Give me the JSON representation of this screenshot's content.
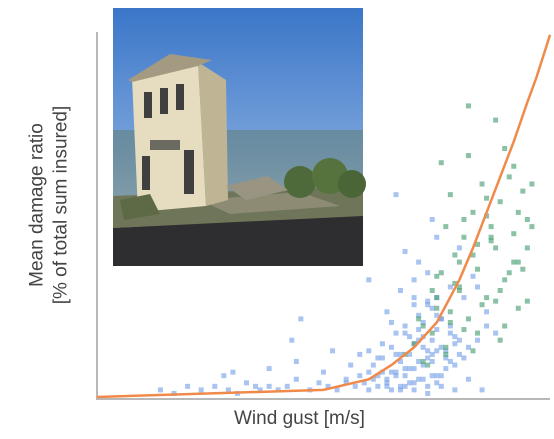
{
  "chart_data": {
    "type": "scatter",
    "title": "",
    "xlabel": "Wind gust [m/s]",
    "ylabel_lines": [
      "Mean damage ratio",
      "[% of total sum insured]"
    ],
    "xlim": [
      0,
      100
    ],
    "ylim": [
      0,
      100
    ],
    "grid": false,
    "legend": "none",
    "axis_color": "#b8b8b8",
    "curve_color": "#f08a4b",
    "point_colors": {
      "blue": "#6f9ce6",
      "green": "#3d9a6a"
    },
    "series": [
      {
        "color_key": "blue",
        "x": [
          14,
          17,
          20,
          23,
          26,
          29,
          31,
          33,
          36,
          38,
          40,
          42,
          44,
          47,
          49,
          51,
          53,
          55,
          57,
          58,
          60,
          61,
          62,
          63,
          64,
          65,
          66,
          67,
          68,
          69,
          70,
          71,
          72,
          73,
          74,
          75,
          59,
          62,
          64,
          66,
          68,
          70,
          72,
          74,
          76,
          61,
          63,
          65,
          67,
          69,
          71,
          73,
          75,
          77,
          79,
          65,
          67,
          69,
          71,
          73,
          75,
          77,
          79,
          70,
          72,
          74,
          76,
          78,
          80,
          66,
          68,
          71,
          74,
          77,
          80,
          72,
          75,
          78,
          81,
          64,
          70,
          76,
          82,
          70,
          74,
          78,
          67,
          73,
          79,
          70,
          76,
          73,
          78,
          50,
          56,
          62,
          68,
          60,
          63,
          66,
          69,
          72,
          75,
          64,
          67,
          70,
          73,
          76,
          79,
          82,
          85,
          84,
          86,
          88,
          81,
          83,
          86,
          71,
          75,
          68,
          74,
          80,
          66,
          60,
          84,
          38,
          44,
          52,
          58,
          45,
          60,
          55,
          35,
          28,
          43,
          30,
          65,
          68,
          71,
          73,
          75
        ],
        "y": [
          2,
          1,
          3,
          2,
          3,
          2,
          1,
          4,
          2,
          3,
          2,
          3,
          5,
          2,
          4,
          3,
          2,
          4,
          3,
          6,
          2,
          5,
          3,
          7,
          4,
          2,
          6,
          3,
          8,
          4,
          2,
          5,
          9,
          3,
          6,
          4,
          4,
          6,
          5,
          7,
          3,
          8,
          5,
          10,
          6,
          9,
          11,
          7,
          12,
          8,
          10,
          13,
          6,
          11,
          9,
          14,
          10,
          12,
          16,
          11,
          13,
          8,
          15,
          15,
          17,
          12,
          14,
          10,
          16,
          18,
          20,
          19,
          16,
          13,
          12,
          21,
          23,
          18,
          11,
          24,
          26,
          22,
          14,
          28,
          25,
          20,
          30,
          27,
          17,
          33,
          22,
          35,
          31,
          7,
          9,
          11,
          6,
          13,
          15,
          12,
          17,
          14,
          19,
          3,
          2,
          4,
          1,
          3,
          2,
          5,
          2,
          16,
          20,
          18,
          28,
          34,
          24,
          38,
          45,
          41,
          50,
          42,
          57,
          33,
          31,
          8,
          10,
          13,
          12,
          22,
          7,
          5,
          3,
          6,
          16,
          7,
          21,
          18,
          23,
          26,
          28
        ]
      },
      {
        "color_key": "green",
        "x": [
          70,
          72,
          74,
          75,
          76,
          77,
          78,
          79,
          80,
          81,
          82,
          83,
          84,
          85,
          86,
          87,
          88,
          89,
          90,
          91,
          92,
          93,
          94,
          95,
          73,
          75,
          77,
          79,
          81,
          83,
          85,
          87,
          89,
          91,
          93,
          95,
          71,
          74,
          77,
          80,
          83,
          86,
          89,
          92,
          95,
          72,
          75,
          78,
          81,
          84,
          87,
          90,
          93,
          96,
          76,
          80,
          84,
          88,
          92,
          96,
          78,
          82,
          86,
          90,
          94,
          68,
          88,
          82
        ],
        "y": [
          15,
          20,
          18,
          28,
          35,
          12,
          24,
          40,
          30,
          45,
          22,
          52,
          36,
          60,
          28,
          48,
          42,
          55,
          33,
          62,
          46,
          38,
          58,
          50,
          9,
          25,
          14,
          32,
          19,
          40,
          26,
          44,
          16,
          35,
          52,
          27,
          22,
          30,
          48,
          38,
          13,
          56,
          30,
          65,
          42,
          10,
          34,
          21,
          50,
          18,
          45,
          70,
          25,
          60,
          66,
          31,
          43,
          27,
          38,
          48,
          57,
          68,
          51,
          20,
          36,
          12,
          78,
          82
        ]
      }
    ],
    "trend_curve": {
      "x": [
        0,
        50,
        60,
        65,
        70,
        75,
        80,
        83,
        86,
        89,
        92,
        95,
        97,
        99,
        100
      ],
      "y": [
        0,
        2,
        5,
        9,
        14,
        21,
        33,
        42,
        52,
        62,
        72,
        83,
        90,
        98,
        102
      ]
    },
    "inset_image": "photo of a storm-damaged two-storey building with debris in front"
  }
}
